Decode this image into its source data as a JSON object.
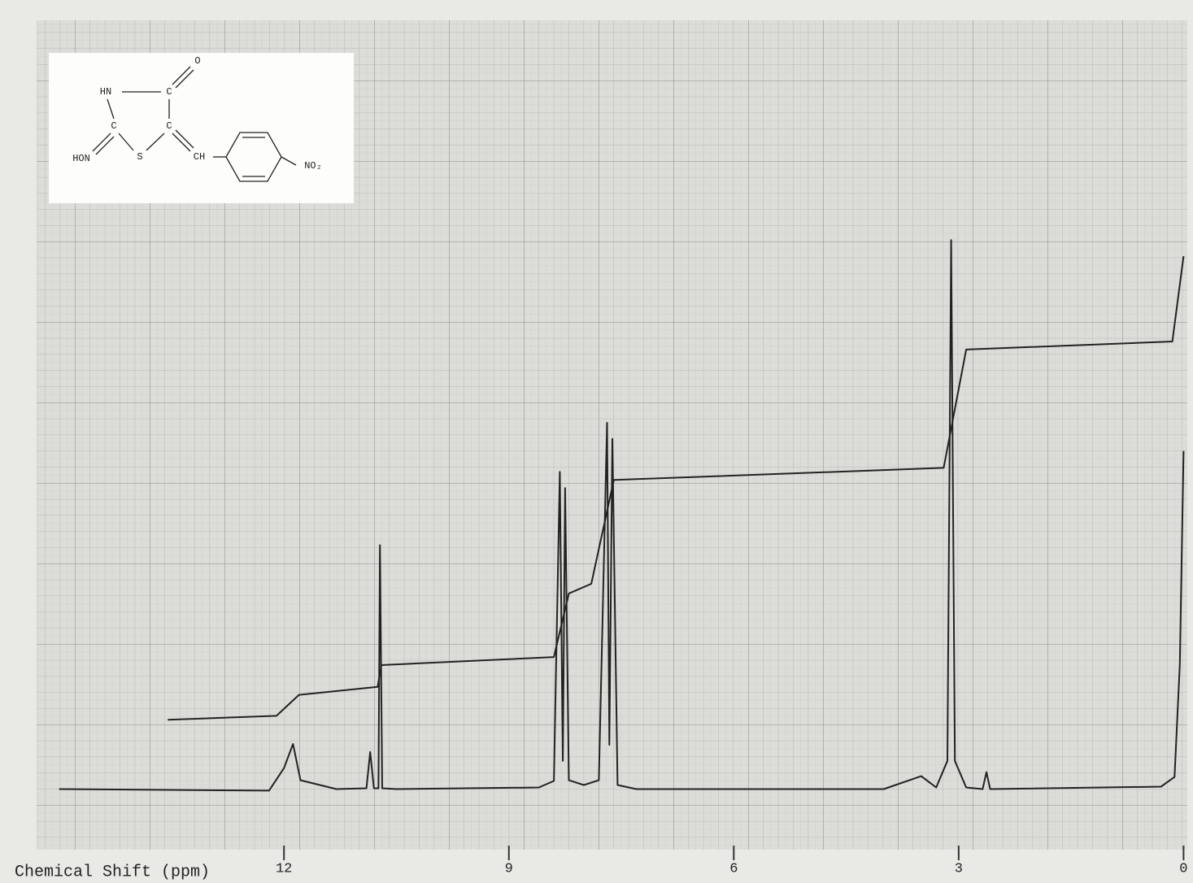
{
  "chart_data": {
    "type": "line",
    "x_label": "Chemical Shift (ppm)",
    "xlim": [
      15.3,
      -0.05
    ],
    "xticks": [
      12,
      9,
      6,
      3,
      0
    ],
    "ylim": [
      0,
      100
    ],
    "grid": true,
    "series": [
      {
        "name": "spectrum",
        "color": "#222222",
        "x": [
          15.0,
          12.2,
          12.0,
          11.88,
          11.78,
          11.3,
          10.9,
          10.85,
          10.8,
          10.74,
          10.72,
          10.69,
          10.5,
          8.6,
          8.4,
          8.32,
          8.28,
          8.25,
          8.2,
          8.0,
          7.8,
          7.69,
          7.66,
          7.62,
          7.55,
          7.3,
          4.0,
          3.5,
          3.3,
          3.15,
          3.1,
          3.05,
          2.9,
          2.68,
          2.63,
          2.58,
          0.3,
          0.12,
          0.05,
          0.0
        ],
        "values": [
          4.5,
          4.3,
          7.1,
          10.1,
          5.6,
          4.5,
          4.6,
          9.1,
          4.6,
          4.6,
          34.8,
          4.6,
          4.5,
          4.7,
          5.5,
          43.9,
          8,
          41.9,
          5.6,
          5.0,
          5.6,
          50.0,
          10,
          48.0,
          5.0,
          4.5,
          4.5,
          6.1,
          4.7,
          8,
          72.7,
          8,
          4.7,
          4.5,
          6.6,
          4.5,
          4.8,
          6,
          20,
          46.5
        ]
      },
      {
        "name": "integral",
        "color": "#222222",
        "x": [
          13.55,
          12.1,
          11.8,
          10.75,
          10.7,
          8.4,
          8.2,
          7.9,
          7.6,
          3.2,
          2.9,
          0.15,
          0.0
        ],
        "values": [
          13.1,
          13.6,
          16.2,
          17.2,
          19.9,
          20.9,
          28.8,
          30.0,
          42.9,
          44.4,
          59.1,
          60.1,
          70.7
        ]
      }
    ]
  },
  "structure": {
    "labels": [
      "O",
      "HN",
      "C",
      "C",
      "C",
      "HON",
      "S",
      "CH",
      "NO₂"
    ]
  }
}
